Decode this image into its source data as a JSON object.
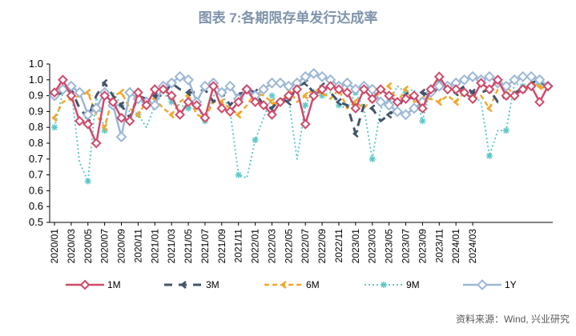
{
  "chart_data": {
    "type": "line",
    "title": "图表 7:各期限存单发行达成率",
    "source": "资料来源：Wind, 兴业研究",
    "ylim": [
      0.5,
      1.0
    ],
    "yticks": [
      "1.0",
      "1.0",
      "0.9",
      "0.9",
      "0.8",
      "0.8",
      "0.7",
      "0.7",
      "0.6",
      "0.6",
      "0.5"
    ],
    "ytick_values": [
      1.0,
      0.95,
      0.9,
      0.85,
      0.8,
      0.75,
      0.7,
      0.65,
      0.6,
      0.55,
      0.5
    ],
    "x_tick_labels": [
      "2020/01",
      "2020/03",
      "2020/05",
      "2020/07",
      "2020/09",
      "2020/11",
      "2021/01",
      "2021/03",
      "2021/05",
      "2021/07",
      "2021/09",
      "2021/11",
      "2022/01",
      "2022/03",
      "2022/05",
      "2022/07",
      "2022/09",
      "2022/11",
      "2023/01",
      "2023/03",
      "2023/05",
      "2023/07",
      "2023/09",
      "2023/11",
      "2024/01",
      "2024/03"
    ],
    "grid": false,
    "legend_position": "bottom",
    "series": [
      {
        "name": "1M",
        "color": "#d04a6a",
        "values": [
          0.91,
          0.95,
          0.9,
          0.82,
          0.81,
          0.75,
          0.9,
          0.88,
          0.83,
          0.82,
          0.91,
          0.87,
          0.92,
          0.92,
          0.9,
          0.84,
          0.88,
          0.87,
          0.83,
          0.93,
          0.86,
          0.85,
          0.88,
          0.92,
          0.88,
          0.87,
          0.84,
          0.88,
          0.9,
          0.92,
          0.81,
          0.9,
          0.92,
          0.93,
          0.92,
          0.91,
          0.86,
          0.92,
          0.89,
          0.92,
          0.9,
          0.88,
          0.89,
          0.9,
          0.86,
          0.92,
          0.96,
          0.92,
          0.92,
          0.91,
          0.89,
          0.94,
          0.92,
          0.95,
          0.9,
          0.9,
          0.92,
          0.93,
          0.88,
          0.93
        ]
      },
      {
        "name": "3M",
        "color": "#44546a",
        "values": [
          0.9,
          0.91,
          0.92,
          0.86,
          0.83,
          0.9,
          0.94,
          0.9,
          0.87,
          0.83,
          0.9,
          0.89,
          0.9,
          0.9,
          0.94,
          0.92,
          0.91,
          0.91,
          0.92,
          0.88,
          0.91,
          0.87,
          0.9,
          0.92,
          0.91,
          0.87,
          0.86,
          0.89,
          0.88,
          0.93,
          0.94,
          0.91,
          0.93,
          0.91,
          0.88,
          0.87,
          0.78,
          0.87,
          0.86,
          0.82,
          0.84,
          0.86,
          0.9,
          0.89,
          0.91,
          0.9,
          0.93,
          0.93,
          0.91,
          0.93,
          0.91,
          0.91,
          0.92,
          0.88,
          0.9,
          0.91,
          0.92,
          0.94,
          0.95,
          0.92
        ]
      },
      {
        "name": "6M",
        "color": "#f0a830",
        "values": [
          0.83,
          0.88,
          0.89,
          0.9,
          0.91,
          0.84,
          0.8,
          0.9,
          0.91,
          0.86,
          0.84,
          0.88,
          0.89,
          0.86,
          0.84,
          0.88,
          0.9,
          0.84,
          0.83,
          0.88,
          0.88,
          0.86,
          0.84,
          0.87,
          0.91,
          0.9,
          0.88,
          0.87,
          0.92,
          0.88,
          0.9,
          0.92,
          0.91,
          0.89,
          0.92,
          0.86,
          0.88,
          0.86,
          0.89,
          0.91,
          0.93,
          0.88,
          0.92,
          0.88,
          0.89,
          0.89,
          0.88,
          0.9,
          0.88,
          0.91,
          0.89,
          0.9,
          0.86,
          0.92,
          0.93,
          0.9,
          0.92,
          0.94,
          0.93,
          0.92
        ]
      },
      {
        "name": "9M",
        "color": "#5fc8c8",
        "values": [
          0.8,
          0.91,
          0.92,
          0.69,
          0.63,
          0.9,
          0.79,
          0.91,
          0.87,
          0.85,
          0.84,
          0.8,
          0.87,
          0.91,
          0.88,
          0.87,
          0.86,
          0.87,
          0.82,
          0.9,
          0.91,
          0.85,
          0.65,
          0.64,
          0.76,
          0.83,
          0.9,
          0.87,
          0.89,
          0.7,
          0.87,
          0.92,
          0.9,
          0.91,
          0.87,
          0.86,
          0.91,
          0.86,
          0.7,
          0.86,
          0.88,
          0.93,
          0.91,
          0.92,
          0.82,
          0.93,
          0.95,
          0.93,
          0.94,
          0.9,
          0.9,
          0.88,
          0.71,
          0.79,
          0.79,
          0.94,
          0.93,
          0.93,
          0.94,
          0.93
        ]
      },
      {
        "name": "1Y",
        "color": "#9cb7d6",
        "values": [
          0.9,
          0.92,
          0.93,
          0.91,
          0.84,
          0.86,
          0.91,
          0.87,
          0.77,
          0.91,
          0.89,
          0.88,
          0.87,
          0.93,
          0.94,
          0.96,
          0.95,
          0.88,
          0.93,
          0.94,
          0.91,
          0.93,
          0.89,
          0.92,
          0.9,
          0.92,
          0.94,
          0.94,
          0.93,
          0.94,
          0.96,
          0.97,
          0.96,
          0.95,
          0.93,
          0.94,
          0.92,
          0.93,
          0.92,
          0.88,
          0.87,
          0.85,
          0.84,
          0.86,
          0.88,
          0.91,
          0.93,
          0.93,
          0.94,
          0.95,
          0.96,
          0.95,
          0.96,
          0.94,
          0.93,
          0.95,
          0.96,
          0.96,
          0.95,
          0.93
        ]
      }
    ]
  }
}
